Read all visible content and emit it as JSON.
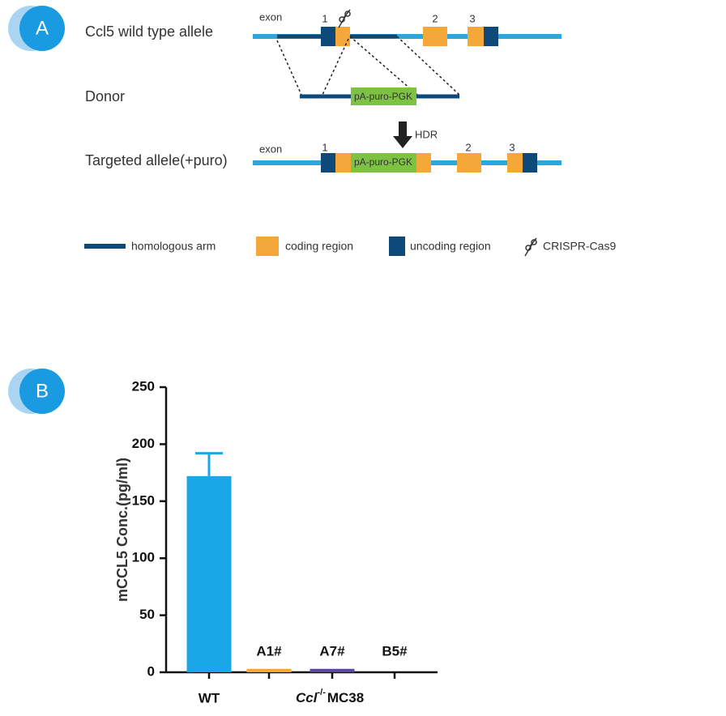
{
  "panel_a": {
    "badge": "A",
    "wild_type": {
      "label": "Ccl5 wild type allele",
      "exon": "exon",
      "exon_numbers": [
        "1",
        "2",
        "3"
      ]
    },
    "donor": {
      "label": "Donor",
      "cassette": "pA-puro-PGK"
    },
    "arrow": "HDR",
    "targeted": {
      "label": "Targeted allele(+puro)",
      "exon": "exon",
      "exon_numbers": [
        "1",
        "2",
        "3"
      ],
      "cassette": "pA-puro-PGK"
    },
    "legend": [
      "homologous arm",
      "coding region",
      "uncoding region",
      "CRISPR-Cas9"
    ]
  },
  "chart_data": {
    "type": "bar",
    "badge": "B",
    "y_label": "mCCL5 Conc.(pg/ml)",
    "categories": [
      "WT",
      "A1#",
      "A7#",
      "B5#"
    ],
    "values": [
      172,
      3,
      3,
      0
    ],
    "errors": [
      20,
      0,
      0,
      0
    ],
    "colors": [
      "#1aa7e8",
      "#f5a83a",
      "#5b4aa0",
      "#888888"
    ],
    "group_label": {
      "italic": "Ccl",
      "superscript": "-/-",
      "text": "MC38"
    },
    "ylim": [
      0,
      250
    ],
    "yticks": [
      0,
      50,
      100,
      150,
      200,
      250
    ]
  }
}
